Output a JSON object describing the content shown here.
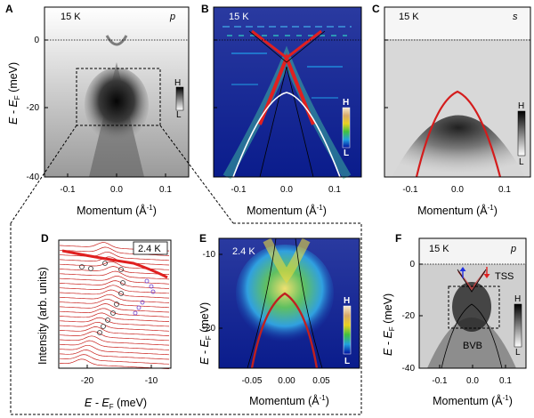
{
  "panels": {
    "A": {
      "letter": "A",
      "temp": "15 K",
      "pol": "p",
      "cb_high": "H",
      "cb_low": "L"
    },
    "B": {
      "letter": "B",
      "temp": "15 K",
      "cb_high": "H",
      "cb_low": "L"
    },
    "C": {
      "letter": "C",
      "temp": "15 K",
      "pol": "s",
      "cb_high": "H",
      "cb_low": "L"
    },
    "D": {
      "letter": "D",
      "temp": "2.4 K"
    },
    "E": {
      "letter": "E",
      "temp": "2.4 K",
      "cb_high": "H",
      "cb_low": "L"
    },
    "F": {
      "letter": "F",
      "temp": "15 K",
      "pol": "p",
      "tss": "TSS",
      "bvb": "BVB",
      "cb_high": "H",
      "cb_low": "L"
    }
  },
  "axes": {
    "energy_label_main": "E - E",
    "energy_label_sub": "F",
    "energy_label_unit": " (meV)",
    "momentum_label_main": "Momentum (Å",
    "momentum_label_sup": "-1",
    "momentum_label_end": ")",
    "intensity_label": "Intensity (arb. units)",
    "top_y_ticks": [
      "0",
      "-20",
      "-40"
    ],
    "top_x_ticks": [
      "-0.1",
      "0.0",
      "0.1"
    ],
    "d_x_ticks": [
      "-20",
      "-10"
    ],
    "e_y_ticks": [
      "-10",
      "-20"
    ],
    "e_x_ticks": [
      "-0.05",
      "0.00",
      "0.05"
    ],
    "f_y_ticks": [
      "0",
      "-20",
      "-40"
    ],
    "f_x_ticks": [
      "-0.1",
      "0.0",
      "0.1"
    ]
  },
  "colors": {
    "dispersion_red": "#e0201c",
    "edc_red": "#c8201c",
    "jet_bg": "#10208f",
    "arrow_blue": "#2030e0",
    "arrow_red": "#e02020"
  }
}
